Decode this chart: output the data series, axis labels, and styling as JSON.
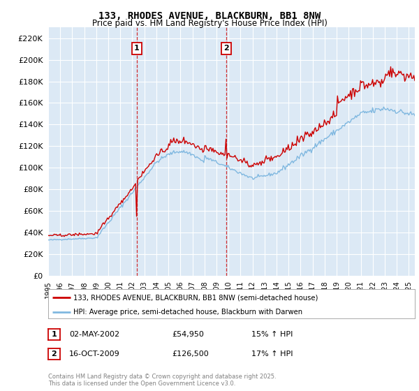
{
  "title": "133, RHODES AVENUE, BLACKBURN, BB1 8NW",
  "subtitle": "Price paid vs. HM Land Registry's House Price Index (HPI)",
  "ylim": [
    0,
    230000
  ],
  "yticks": [
    0,
    20000,
    40000,
    60000,
    80000,
    100000,
    120000,
    140000,
    160000,
    180000,
    200000,
    220000
  ],
  "plot_bg_color": "#dce9f5",
  "line1_color": "#cc0000",
  "line2_color": "#80b8e0",
  "legend_label1": "133, RHODES AVENUE, BLACKBURN, BB1 8NW (semi-detached house)",
  "legend_label2": "HPI: Average price, semi-detached house, Blackburn with Darwen",
  "annotation1_date": "02-MAY-2002",
  "annotation1_price": "£54,950",
  "annotation1_hpi": "15% ↑ HPI",
  "annotation2_date": "16-OCT-2009",
  "annotation2_price": "£126,500",
  "annotation2_hpi": "17% ↑ HPI",
  "footer": "Contains HM Land Registry data © Crown copyright and database right 2025.\nThis data is licensed under the Open Government Licence v3.0.",
  "start_year": 1995.0,
  "end_year": 2025.5,
  "sale1_t": 2002.37,
  "sale2_t": 2009.79,
  "sale1_price": 54950,
  "sale2_price": 126500
}
